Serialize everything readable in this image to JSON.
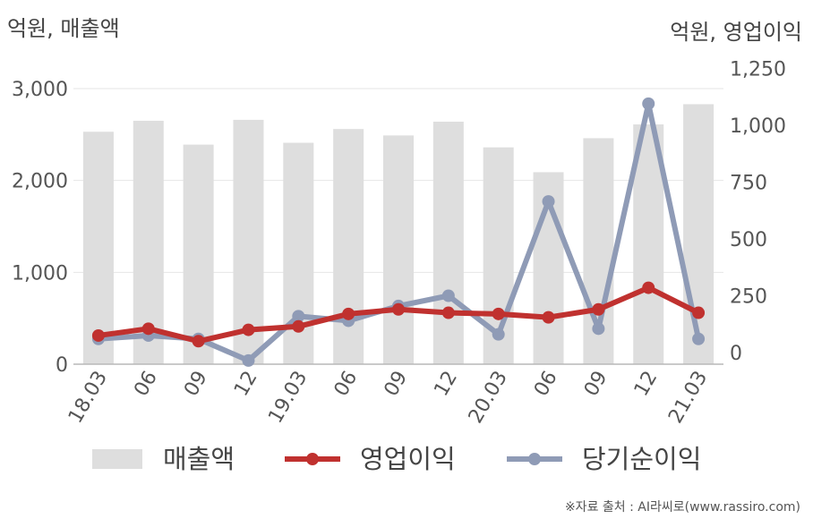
{
  "units": {
    "left": "억원, 매출액",
    "right": "억원, 영업이익"
  },
  "source": "※자료 출처 : AI라씨로(www.rassiro.com)",
  "colors": {
    "bar": "#dedede",
    "operating": "#c0312f",
    "net": "#8f9bb6",
    "grid": "#e6e6e6",
    "axis": "#b8b8b8"
  },
  "chart_data": {
    "type": "bar+line",
    "categories": [
      "18.03",
      "06",
      "09",
      "12",
      "19.03",
      "06",
      "09",
      "12",
      "20.03",
      "06",
      "09",
      "12",
      "21.03"
    ],
    "left_axis": {
      "ylim": [
        0,
        3000
      ],
      "ticks": [
        0,
        1000,
        2000,
        3000
      ],
      "tick_labels": [
        "0",
        "1,000",
        "2,000",
        "3,000"
      ]
    },
    "right_axis": {
      "ylim": [
        0,
        1250
      ],
      "ticks": [
        0,
        250,
        500,
        750,
        1000,
        1250
      ],
      "tick_labels": [
        "0",
        "250",
        "500",
        "750",
        "1,000",
        "1,250"
      ]
    },
    "series": [
      {
        "name": "매출액",
        "type": "bar",
        "axis": "left",
        "values": [
          2530,
          2650,
          2390,
          2660,
          2410,
          2560,
          2490,
          2640,
          2360,
          2090,
          2460,
          2610,
          2830
        ]
      },
      {
        "name": "영업이익",
        "type": "line",
        "axis": "right",
        "values": [
          75,
          105,
          50,
          100,
          115,
          170,
          190,
          175,
          170,
          155,
          190,
          285,
          175
        ]
      },
      {
        "name": "당기순이익",
        "type": "line",
        "axis": "right",
        "values": [
          60,
          75,
          60,
          -35,
          160,
          140,
          205,
          250,
          80,
          665,
          105,
          1095,
          60
        ]
      }
    ],
    "grid": true,
    "legend": "bottom"
  }
}
